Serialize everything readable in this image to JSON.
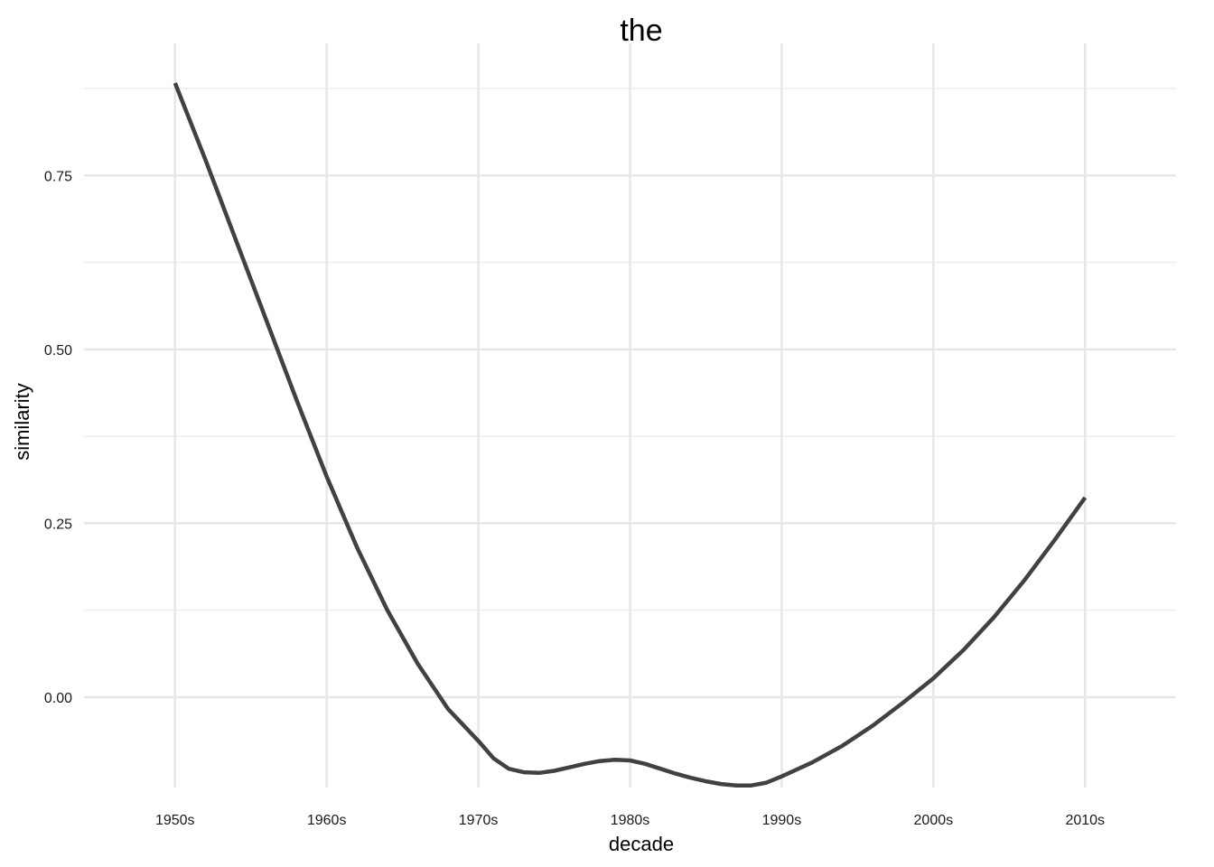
{
  "chart_data": {
    "type": "line",
    "title": "the",
    "xlabel": "decade",
    "ylabel": "similarity",
    "categories": [
      "1950s",
      "1960s",
      "1970s",
      "1980s",
      "1990s",
      "2000s",
      "2010s"
    ],
    "x_range": [
      1944,
      2016
    ],
    "ylim": [
      -0.13,
      0.94
    ],
    "y_ticks": [
      0.0,
      0.25,
      0.5,
      0.75
    ],
    "y_tick_labels": [
      "0.00",
      "0.25",
      "0.50",
      "0.75"
    ],
    "grid": true,
    "legend": "none",
    "series": [
      {
        "color": "#414141",
        "x": [
          1950,
          1952,
          1954,
          1956,
          1958,
          1960,
          1962,
          1964,
          1966,
          1968,
          1970,
          1971,
          1972,
          1973,
          1974,
          1975,
          1976,
          1977,
          1978,
          1979,
          1980,
          1981,
          1982,
          1983,
          1984,
          1985,
          1986,
          1987,
          1988,
          1989,
          1990,
          1992,
          1994,
          1996,
          1998,
          2000,
          2002,
          2004,
          2006,
          2008,
          2010
        ],
        "y": [
          0.883,
          0.773,
          0.658,
          0.543,
          0.428,
          0.317,
          0.215,
          0.125,
          0.048,
          -0.017,
          -0.063,
          -0.088,
          -0.103,
          -0.108,
          -0.109,
          -0.106,
          -0.101,
          -0.096,
          -0.092,
          -0.09,
          -0.091,
          -0.096,
          -0.103,
          -0.11,
          -0.116,
          -0.121,
          -0.125,
          -0.127,
          -0.127,
          -0.123,
          -0.114,
          -0.094,
          -0.07,
          -0.041,
          -0.008,
          0.027,
          0.068,
          0.115,
          0.168,
          0.226,
          0.287
        ]
      }
    ]
  }
}
